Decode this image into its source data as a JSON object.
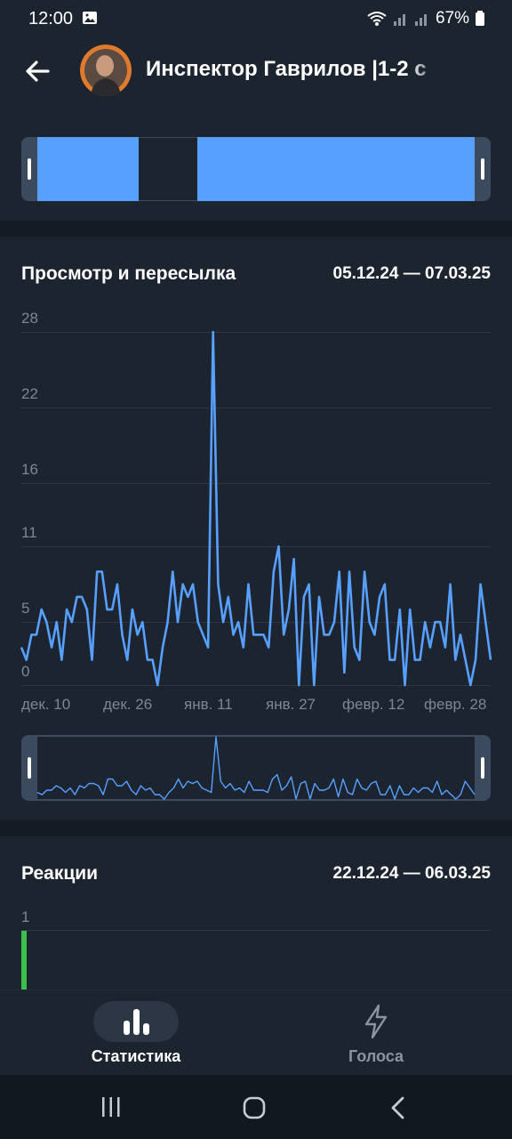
{
  "status_bar": {
    "time": "12:00",
    "battery": "67%",
    "icons": [
      "image-icon",
      "wifi-icon",
      "signal-icon",
      "battery-icon"
    ]
  },
  "header": {
    "title": "Инспектор Гаврилов |1-2 с",
    "back_icon": "arrow-left-icon"
  },
  "views_section": {
    "title": "Просмотр и пересылка",
    "date_range": "05.12.24 — 07.03.25",
    "y_ticks": [
      "28",
      "22",
      "16",
      "11",
      "5",
      "0"
    ],
    "x_ticks": [
      "дек. 10",
      "дек. 26",
      "янв. 11",
      "янв. 27",
      "февр. 12",
      "февр. 28"
    ]
  },
  "reactions_section": {
    "title": "Реакции",
    "date_range": "22.12.24 — 06.03.25",
    "y_ticks": [
      "1"
    ]
  },
  "bottom_nav": {
    "items": [
      {
        "label": "Статистика",
        "icon": "bar-chart-icon",
        "active": true
      },
      {
        "label": "Голоса",
        "icon": "lightning-icon",
        "active": false
      }
    ]
  },
  "colors": {
    "accent": "#57a0ff",
    "background": "#1c2430",
    "reaction_bar": "#3cc24a"
  },
  "chart_data": [
    {
      "type": "line",
      "title": "Просмотр и пересылка",
      "date_range": "05.12.24 — 07.03.25",
      "x_start": "05.12.24",
      "x_end": "07.03.25",
      "ylim": [
        0,
        28
      ],
      "y_ticks": [
        0,
        5,
        11,
        16,
        22,
        28
      ],
      "x_tick_labels": [
        "дек. 10",
        "дек. 26",
        "янв. 11",
        "янв. 27",
        "февр. 12",
        "февр. 28"
      ],
      "series": [
        {
          "values": [
            3,
            2,
            4,
            4,
            6,
            5,
            3,
            5,
            2,
            6,
            5,
            7,
            7,
            6,
            2,
            9,
            9,
            6,
            6,
            8,
            4,
            2,
            6,
            4,
            5,
            2,
            2,
            0,
            3,
            5,
            9,
            5,
            8,
            7,
            8,
            5,
            4,
            3,
            28,
            8,
            5,
            7,
            4,
            5,
            3,
            8,
            4,
            4,
            4,
            3,
            9,
            11,
            4,
            6,
            10,
            0,
            7,
            8,
            0,
            7,
            4,
            4,
            5,
            9,
            1,
            9,
            3,
            2,
            9,
            5,
            4,
            7,
            8,
            2,
            2,
            6,
            0,
            6,
            2,
            2,
            5,
            3,
            5,
            5,
            3,
            8,
            2,
            4,
            2,
            0,
            2,
            8,
            5,
            2
          ]
        }
      ],
      "grid": true
    },
    {
      "type": "bar",
      "title": "Реакции",
      "date_range": "22.12.24 — 06.03.25",
      "y_ticks": [
        1
      ],
      "series": [
        {
          "values": [
            1
          ]
        }
      ]
    }
  ]
}
